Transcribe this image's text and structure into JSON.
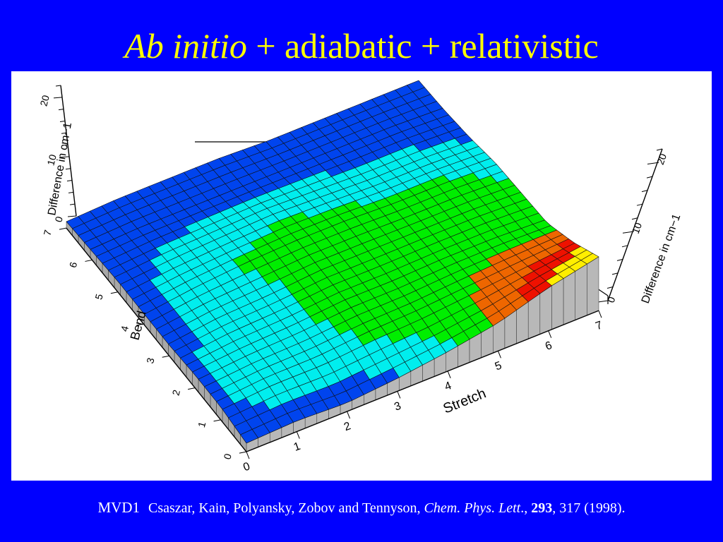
{
  "slide": {
    "title_italic": "Ab initio",
    "title_rest": " + adiabatic + relativistic",
    "text_color": "#ffff00",
    "background": "#0000ff"
  },
  "citation": {
    "label": "MVD1",
    "authors": "Csaszar, Kain, Polyansky, Zobov and Tennyson, ",
    "journal": "Chem. Phys. Lett",
    "sep": "., ",
    "volume": "293",
    "pages": ", 317 (1998)."
  },
  "chart_data": {
    "type": "surface",
    "title": "",
    "xlabel": "Stretch",
    "ylabel": "Bend",
    "zlabel": "Difference in cm−1",
    "x_ticks": [
      "0",
      "1",
      "2",
      "3",
      "4",
      "5",
      "6",
      "7"
    ],
    "y_ticks": [
      "0",
      "1",
      "2",
      "3",
      "4",
      "5",
      "6",
      "7"
    ],
    "z_ticks": [
      "0",
      "10",
      "20"
    ],
    "back_x_ticks": [
      "4",
      "5",
      "6",
      "7"
    ],
    "back_y_ticks": [
      "1",
      "2",
      "3",
      "4",
      "5",
      "6",
      "7"
    ],
    "xlim": [
      0,
      7
    ],
    "ylim": [
      0,
      7
    ],
    "zlim": [
      0,
      20
    ],
    "color_scale": [
      "#0044ee",
      "#00eeee",
      "#00ee00",
      "#ee6600",
      "#ee1100",
      "#ffee00"
    ],
    "x": [
      0,
      1,
      2,
      3,
      4,
      5,
      6,
      7
    ],
    "y": [
      0,
      1,
      2,
      3,
      4,
      5,
      6,
      7
    ],
    "z": [
      [
        1,
        2,
        1,
        3,
        6,
        10,
        17,
        22
      ],
      [
        3,
        5,
        5,
        7,
        8,
        10,
        12,
        14
      ],
      [
        3,
        5,
        6,
        8,
        8,
        9,
        9,
        8
      ],
      [
        2,
        5,
        6,
        8,
        8,
        8,
        8,
        7
      ],
      [
        2,
        5,
        7,
        8,
        8,
        7,
        7,
        6
      ],
      [
        2,
        4,
        5,
        6,
        5,
        4,
        4,
        3
      ],
      [
        1,
        2,
        2,
        2,
        2,
        2,
        2,
        1
      ],
      [
        0,
        1,
        1,
        1,
        0,
        0,
        0,
        0
      ]
    ]
  }
}
